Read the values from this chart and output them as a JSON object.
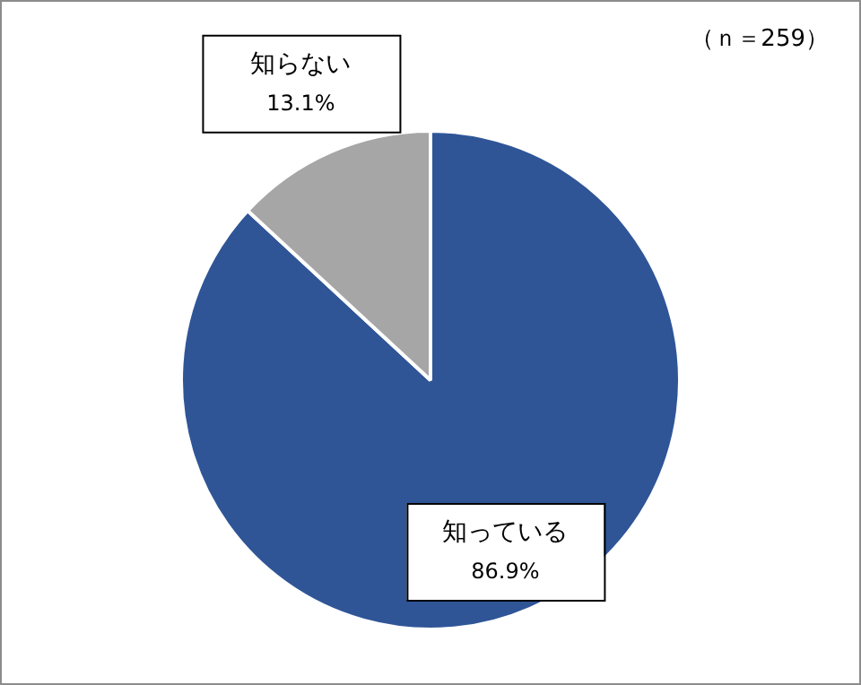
{
  "chart_data": {
    "type": "pie",
    "categories": [
      "知っている",
      "知らない"
    ],
    "values": [
      86.9,
      13.1
    ],
    "colors": [
      "#2f5597",
      "#a6a6a6"
    ],
    "value_labels": [
      "86.9%",
      "13.1%"
    ],
    "annotations": [
      "（ｎ＝259）"
    ],
    "legend": false
  }
}
